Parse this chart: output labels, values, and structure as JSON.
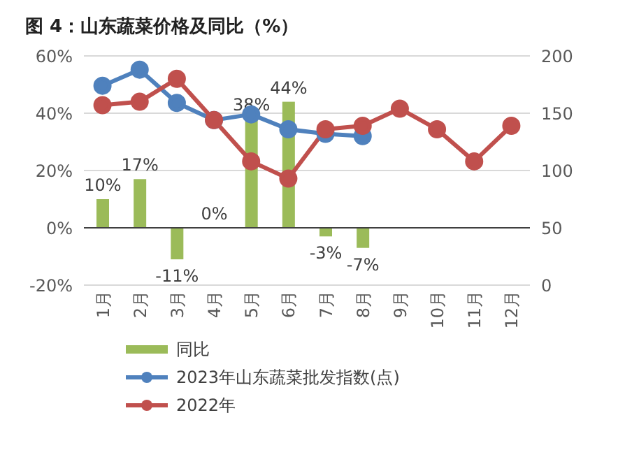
{
  "chart_data": {
    "type": "bar",
    "title": "图 4：山东蔬菜价格及同比（%）",
    "categories": [
      "1月",
      "2月",
      "3月",
      "4月",
      "5月",
      "6月",
      "7月",
      "8月",
      "9月",
      "10月",
      "11月",
      "12月"
    ],
    "series": [
      {
        "name": "同比",
        "color": "#9bbb59",
        "values": [
          10,
          17,
          -11,
          0,
          38,
          44,
          -3,
          -7,
          null,
          null,
          null,
          null
        ],
        "value_labels": [
          "10%",
          "17%",
          "-11%",
          "0%",
          "38%",
          "44%",
          "-3%",
          "-7%",
          null,
          null,
          null,
          null
        ]
      },
      {
        "name": "2023年山东蔬菜批发指数(点)",
        "type": "line",
        "axis": "y2",
        "color": "#4f81bd",
        "values": [
          174,
          188,
          159,
          144,
          149,
          136,
          132,
          130,
          null,
          null,
          null,
          null
        ]
      },
      {
        "name": "2022年",
        "type": "line",
        "axis": "y2",
        "color": "#c0504d",
        "values": [
          157,
          160,
          180,
          144,
          108,
          93,
          136,
          139,
          154,
          136,
          108,
          139
        ]
      }
    ],
    "ylim": [
      -20,
      60
    ],
    "yticks": [
      {
        "value": -20,
        "label": "-20%"
      },
      {
        "value": 0,
        "label": "0%"
      },
      {
        "value": 20,
        "label": "20%"
      },
      {
        "value": 40,
        "label": "40%"
      },
      {
        "value": 60,
        "label": "60%"
      }
    ],
    "y2lim": [
      0,
      200
    ],
    "y2ticks": [
      0,
      50,
      100,
      150,
      200
    ],
    "grid": "y",
    "legend": "bottom",
    "marker": "circle",
    "line_style": "solid"
  }
}
